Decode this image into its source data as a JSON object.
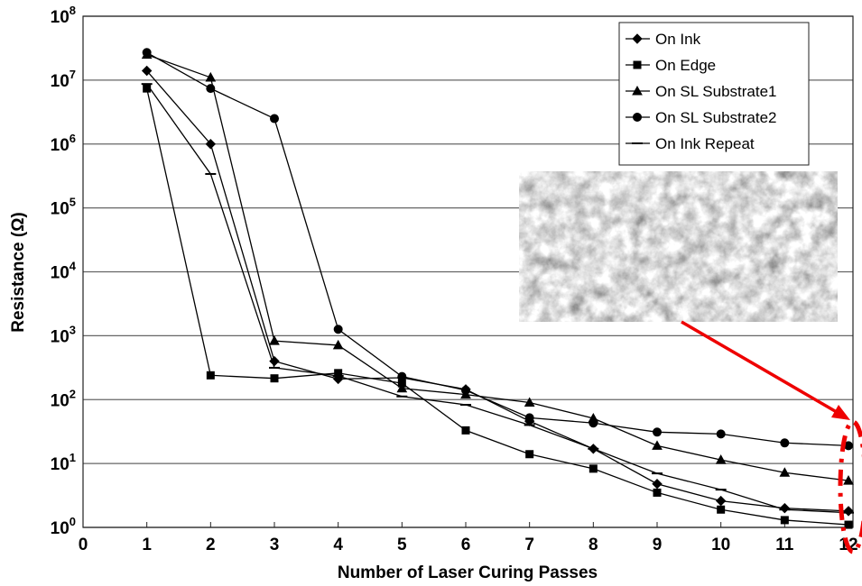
{
  "chart_data": {
    "type": "line",
    "log_scale_y": true,
    "grid": true,
    "x_label": "Number of Laser Curing Passes",
    "y_label": "Resistance (Ω)",
    "x": [
      1,
      2,
      3,
      4,
      5,
      6,
      7,
      8,
      9,
      10,
      11,
      12
    ],
    "xlim": [
      0,
      12
    ],
    "xticks": [
      0,
      1,
      2,
      3,
      4,
      5,
      6,
      7,
      8,
      9,
      10,
      11,
      12
    ],
    "ylim": [
      1,
      100000000
    ],
    "yticks": [
      {
        "value": 1,
        "label": "10^0"
      },
      {
        "value": 10,
        "label": "10^1"
      },
      {
        "value": 100,
        "label": "10^2"
      },
      {
        "value": 1000,
        "label": "10^3"
      },
      {
        "value": 10000,
        "label": "10^4"
      },
      {
        "value": 100000,
        "label": "10^5"
      },
      {
        "value": 1000000,
        "label": "10^6"
      },
      {
        "value": 10000000,
        "label": "10^7"
      },
      {
        "value": 100000000,
        "label": "10^8"
      }
    ],
    "legend": "top-right",
    "series": [
      {
        "name": "On Ink",
        "color": "#000000",
        "marker": "diamond",
        "values": [
          14000000,
          1000000,
          400,
          210,
          220,
          145,
          46,
          17,
          4.8,
          2.6,
          2.0,
          1.8
        ]
      },
      {
        "name": "On Edge",
        "color": "#000000",
        "marker": "square",
        "values": [
          7400000,
          240,
          215,
          260,
          180,
          33,
          14,
          8.3,
          3.5,
          1.9,
          1.3,
          1.1
        ]
      },
      {
        "name": "On SL Substrate1",
        "color": "#000000",
        "marker": "triangle",
        "values": [
          25000000,
          11000000,
          830,
          710,
          150,
          120,
          90,
          51,
          19,
          11.4,
          7.2,
          5.4
        ]
      },
      {
        "name": "On SL Substrate2",
        "color": "#000000",
        "marker": "circle",
        "values": [
          27000000,
          7400000,
          2500000,
          1260,
          230,
          140,
          52,
          43,
          31,
          29,
          21,
          19
        ]
      },
      {
        "name": "On Ink Repeat",
        "color": "#000000",
        "marker": "dash",
        "values": [
          8700000,
          340000,
          315,
          235,
          112,
          83,
          40,
          17,
          7,
          3.9,
          1.9,
          1.7
        ]
      }
    ]
  }
}
